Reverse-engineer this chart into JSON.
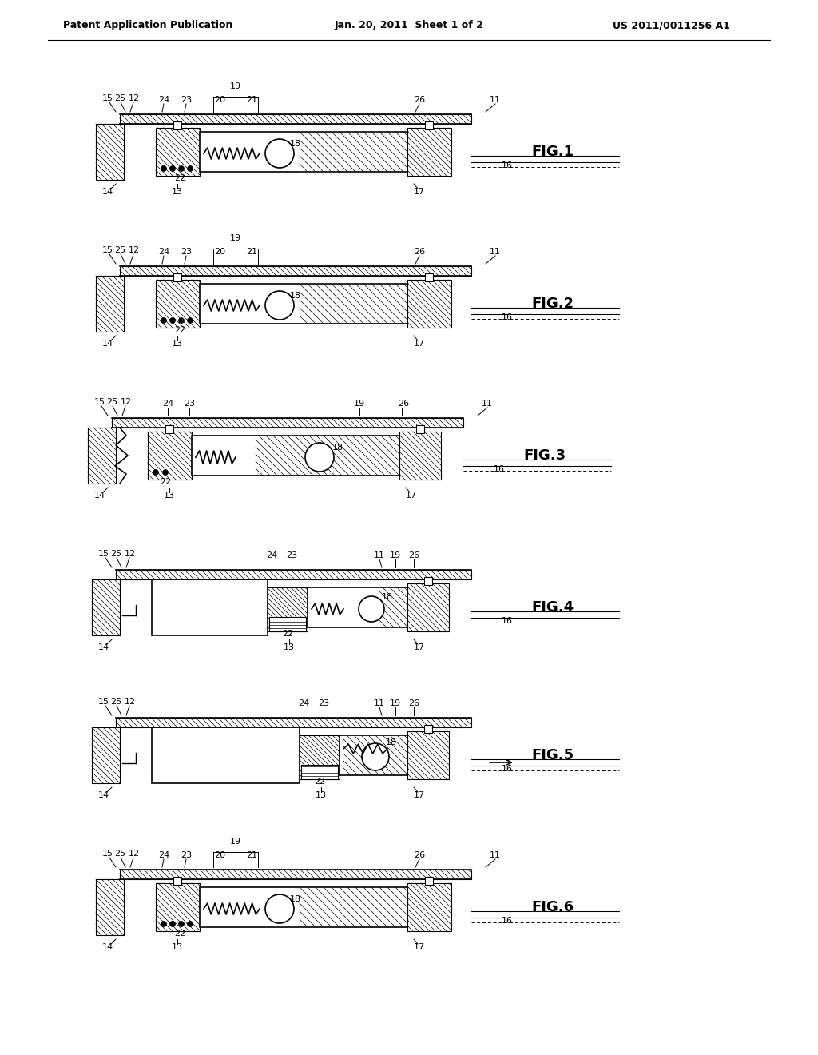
{
  "bg_color": "#ffffff",
  "header_left": "Patent Application Publication",
  "header_center": "Jan. 20, 2011  Sheet 1 of 2",
  "header_right": "US 2011/0011256 A1",
  "fig_labels": [
    "FIG.1",
    "FIG.2",
    "FIG.3",
    "FIG.4",
    "FIG.5",
    "FIG.6"
  ]
}
